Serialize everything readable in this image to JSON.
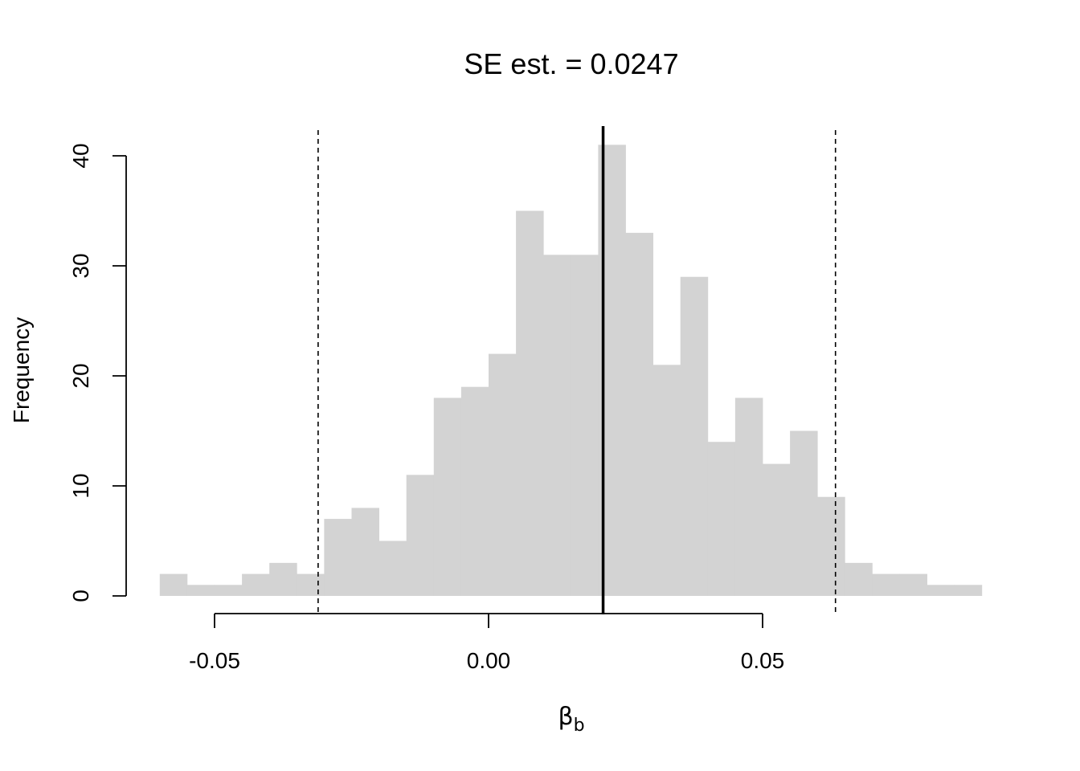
{
  "chart_data": {
    "type": "bar",
    "title": "SE est. = 0.0247",
    "xlabel": "β",
    "xlabel_subscript": "b",
    "ylabel": "Frequency",
    "bin_start": -0.06,
    "bin_width": 0.005,
    "counts": [
      2,
      1,
      1,
      2,
      3,
      2,
      7,
      8,
      5,
      11,
      18,
      19,
      22,
      35,
      31,
      31,
      41,
      33,
      21,
      29,
      14,
      18,
      12,
      15,
      9,
      3,
      2,
      2,
      1,
      1
    ],
    "bar_color": "#d3d3d3",
    "xlim": [
      -0.066,
      0.093
    ],
    "ylim": [
      0,
      40
    ],
    "x_ticks": [
      -0.05,
      0.0,
      0.05
    ],
    "x_tick_labels": [
      "-0.05",
      "0.00",
      "0.05"
    ],
    "y_ticks": [
      0,
      10,
      20,
      30,
      40
    ],
    "y_tick_labels": [
      "0",
      "10",
      "20",
      "30",
      "40"
    ],
    "reference_lines": [
      {
        "name": "estimate",
        "x": 0.0209,
        "style": "solid"
      },
      {
        "name": "lower-ci",
        "x": -0.0311,
        "style": "dashed"
      },
      {
        "name": "upper-ci",
        "x": 0.0633,
        "style": "dashed"
      }
    ],
    "grid": false
  }
}
